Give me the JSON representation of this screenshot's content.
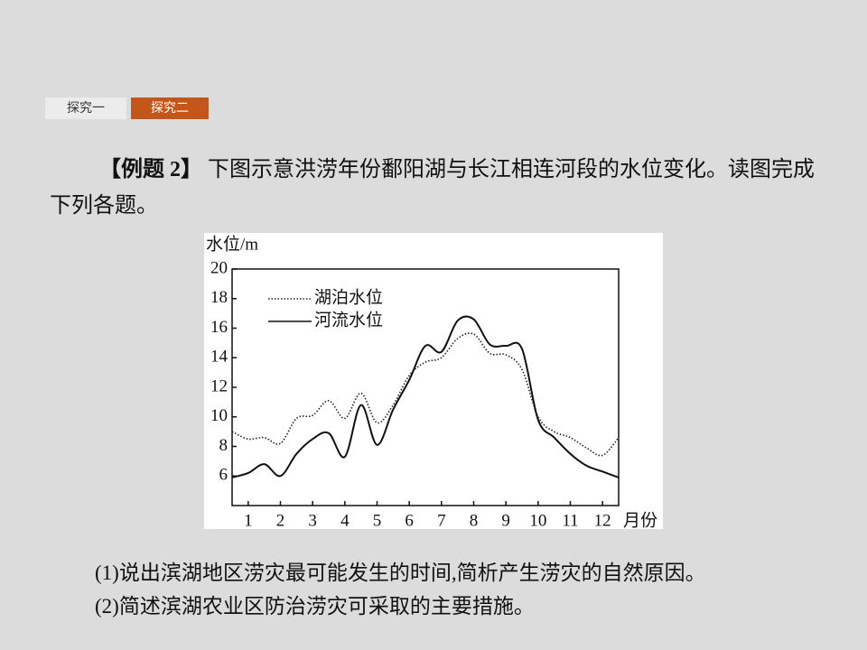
{
  "tabs": [
    "探究一",
    "探究二"
  ],
  "example": {
    "label": "【例题 2】",
    "text": "下图示意洪涝年份鄱阳湖与长江相连河段的水位变化。读图完成下列各题。"
  },
  "chart_data": {
    "type": "line",
    "ylabel": "水位/m",
    "xlabel": "月份",
    "x": [
      0.5,
      1,
      1.5,
      2,
      2.5,
      3,
      3.5,
      4,
      4.5,
      5,
      5.5,
      6,
      6.5,
      7,
      7.5,
      8,
      8.5,
      9,
      9.5,
      10,
      10.5,
      11,
      11.5,
      12,
      12.5
    ],
    "series": [
      {
        "name": "湖泊水位",
        "color": "#222222",
        "dash": "dotted",
        "values": [
          9.0,
          8.5,
          8.6,
          8.2,
          9.9,
          10.1,
          11.1,
          9.9,
          11.6,
          9.6,
          10.8,
          12.8,
          13.7,
          14.0,
          15.3,
          15.6,
          14.3,
          14.2,
          13.2,
          10.0,
          9.0,
          8.6,
          7.9,
          7.4,
          8.6
        ]
      },
      {
        "name": "河流水位",
        "color": "#111111",
        "dash": "solid",
        "values": [
          5.9,
          6.2,
          6.8,
          6.0,
          7.5,
          8.5,
          8.9,
          7.3,
          10.8,
          8.1,
          10.5,
          12.5,
          14.8,
          14.4,
          16.5,
          16.6,
          14.9,
          14.8,
          14.6,
          9.8,
          8.6,
          7.5,
          6.7,
          6.3,
          5.9
        ]
      }
    ],
    "xlim": [
      0.5,
      12.5
    ],
    "xticks": [
      1,
      2,
      3,
      4,
      5,
      6,
      7,
      8,
      9,
      10,
      11,
      12
    ],
    "ylim": [
      4,
      20
    ],
    "yticks": [
      6,
      8,
      10,
      12,
      14,
      16,
      18,
      20
    ],
    "legend": "upper left"
  },
  "questions": [
    "(1)说出滨湖地区涝灾最可能发生的时间,简析产生涝灾的自然原因。",
    "(2)简述滨湖农业区防治涝灾可采取的主要措施。"
  ]
}
